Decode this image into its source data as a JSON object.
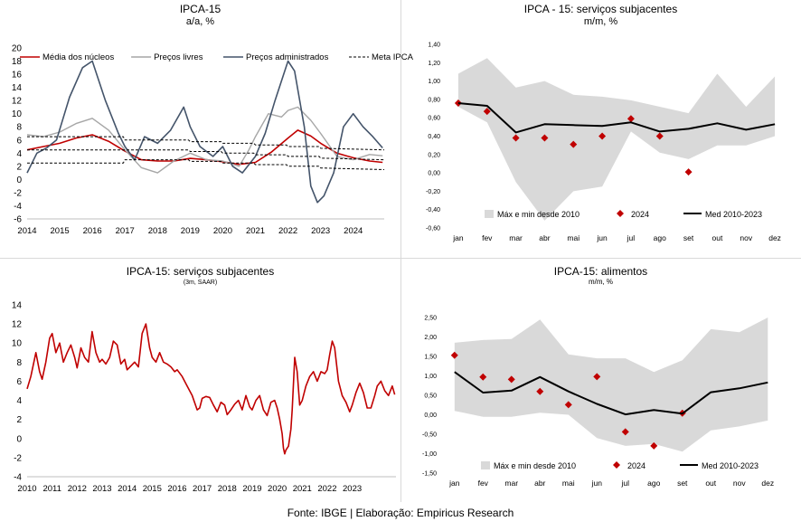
{
  "source": "Fonte: IBGE | Elaboração: Empiricus Research",
  "colors": {
    "red": "#c00000",
    "gray": "#a6a6a6",
    "navy": "#44546a",
    "black": "#000000",
    "band": "#d9d9d9",
    "diamond": "#c00000"
  },
  "chart_data": [
    {
      "id": "p1",
      "type": "line",
      "title": "IPCA-15",
      "subtitle": "a/a, %",
      "ylim": [
        -6,
        20
      ],
      "yticks": [
        -6,
        -4,
        -2,
        0,
        2,
        4,
        6,
        8,
        10,
        12,
        14,
        16,
        18,
        20
      ],
      "xlim": [
        2014,
        2024.95
      ],
      "xticks": [
        2014,
        2015,
        2016,
        2017,
        2018,
        2019,
        2020,
        2021,
        2022,
        2023,
        2024
      ],
      "legend_position": "top",
      "series": [
        {
          "name": "Média dos núcleos",
          "style": "red",
          "x": [
            2014,
            2014.5,
            2015,
            2015.5,
            2016,
            2016.5,
            2017,
            2017.5,
            2018,
            2018.5,
            2019,
            2019.5,
            2020,
            2020.5,
            2021,
            2021.5,
            2022,
            2022.3,
            2022.7,
            2023,
            2023.5,
            2024,
            2024.5,
            2024.9
          ],
          "y": [
            4.5,
            5.0,
            5.5,
            6.3,
            6.8,
            5.8,
            4.3,
            3.0,
            2.8,
            2.8,
            3.2,
            3.0,
            2.7,
            2.3,
            2.6,
            4.2,
            6.3,
            7.5,
            6.6,
            5.5,
            4.0,
            3.3,
            2.8,
            2.6
          ]
        },
        {
          "name": "Preços livres",
          "style": "gray",
          "x": [
            2014,
            2014.5,
            2015,
            2015.5,
            2016,
            2016.5,
            2017,
            2017.5,
            2018,
            2018.5,
            2019,
            2019.5,
            2020,
            2020.5,
            2020.8,
            2021,
            2021.4,
            2021.8,
            2022,
            2022.3,
            2022.7,
            2023,
            2023.5,
            2024,
            2024.5,
            2024.9
          ],
          "y": [
            6.8,
            6.5,
            7.2,
            8.5,
            9.3,
            7.5,
            4.5,
            1.8,
            1.0,
            2.8,
            4.0,
            3.0,
            2.8,
            2.0,
            4.5,
            6.5,
            10.0,
            9.5,
            10.5,
            11.0,
            9.0,
            7.0,
            3.5,
            3.0,
            3.8,
            3.6
          ]
        },
        {
          "name": "Preços administrados",
          "style": "navy",
          "x": [
            2014,
            2014.3,
            2014.6,
            2014.9,
            2015.3,
            2015.7,
            2016,
            2016.4,
            2016.8,
            2017,
            2017.3,
            2017.6,
            2018,
            2018.4,
            2018.8,
            2019,
            2019.3,
            2019.7,
            2020,
            2020.3,
            2020.6,
            2021,
            2021.3,
            2021.6,
            2021.9,
            2022,
            2022.2,
            2022.5,
            2022.7,
            2022.9,
            2023.1,
            2023.4,
            2023.7,
            2024,
            2024.3,
            2024.6,
            2024.9
          ],
          "y": [
            1.0,
            4.0,
            4.8,
            6.0,
            12.5,
            17.0,
            18.0,
            12.0,
            7.0,
            5.0,
            3.0,
            6.5,
            5.5,
            7.5,
            11.0,
            8.0,
            5.0,
            3.5,
            5.0,
            2.0,
            1.0,
            3.5,
            7.0,
            12.0,
            16.5,
            18.0,
            16.5,
            8.0,
            -1.0,
            -3.5,
            -2.5,
            1.0,
            8.0,
            10.0,
            8.0,
            6.5,
            4.8
          ]
        },
        {
          "name": "Meta IPCA",
          "style": "dash",
          "x": [
            2014,
            2016.95,
            2017,
            2017.95,
            2018,
            2018.95,
            2019,
            2019.95,
            2020,
            2020.95,
            2021,
            2021.95,
            2022,
            2022.95,
            2023,
            2024.95
          ],
          "y": [
            4.5,
            4.5,
            4.5,
            4.5,
            4.5,
            4.5,
            4.25,
            4.25,
            4.0,
            4.0,
            3.75,
            3.75,
            3.5,
            3.5,
            3.25,
            3.0
          ]
        },
        {
          "name": "",
          "style": "dash",
          "x": [
            2014,
            2016.95,
            2017,
            2017.95,
            2018,
            2018.95,
            2019,
            2019.95,
            2020,
            2020.95,
            2021,
            2021.95,
            2022,
            2022.95,
            2023,
            2024.95
          ],
          "y": [
            6.5,
            6.5,
            6.0,
            6.0,
            6.0,
            6.0,
            5.75,
            5.75,
            5.5,
            5.5,
            5.25,
            5.25,
            5.0,
            5.0,
            4.75,
            4.5
          ]
        },
        {
          "name": "",
          "style": "dash",
          "x": [
            2014,
            2016.95,
            2017,
            2017.95,
            2018,
            2018.95,
            2019,
            2019.95,
            2020,
            2020.95,
            2021,
            2021.95,
            2022,
            2022.95,
            2023,
            2024.95
          ],
          "y": [
            2.5,
            2.5,
            3.0,
            3.0,
            3.0,
            3.0,
            2.75,
            2.75,
            2.5,
            2.5,
            2.25,
            2.25,
            2.0,
            2.0,
            1.75,
            1.5
          ]
        }
      ]
    },
    {
      "id": "p2",
      "type": "line",
      "title": "IPCA - 15: serviços subjacentes",
      "subtitle": "m/m, %",
      "ylim": [
        -0.6,
        1.4
      ],
      "yticks": [
        "-0,60",
        "-0,40",
        "-0,20",
        "0,00",
        "0,20",
        "0,40",
        "0,60",
        "0,80",
        "1,00",
        "1,20",
        "1,40"
      ],
      "ytick_values": [
        -0.6,
        -0.4,
        -0.2,
        0,
        0.2,
        0.4,
        0.6,
        0.8,
        1.0,
        1.2,
        1.4
      ],
      "categories": [
        "jan",
        "fev",
        "mar",
        "abr",
        "mai",
        "jun",
        "jul",
        "ago",
        "set",
        "out",
        "nov",
        "dez"
      ],
      "band": {
        "name": "Máx e min desde 2010",
        "max": [
          1.08,
          1.25,
          0.93,
          1.0,
          0.85,
          0.83,
          0.79,
          0.72,
          0.65,
          1.08,
          0.72,
          1.05
        ],
        "min": [
          0.72,
          0.55,
          -0.1,
          -0.52,
          -0.2,
          -0.15,
          0.45,
          0.22,
          0.15,
          0.3,
          0.3,
          0.4
        ]
      },
      "series": [
        {
          "name": "2024",
          "style": "diamond",
          "values": [
            0.76,
            0.67,
            0.38,
            0.38,
            0.31,
            0.4,
            0.59,
            0.4,
            0.01,
            null,
            null,
            null
          ]
        },
        {
          "name": "Med 2010-2023",
          "style": "black",
          "values": [
            0.76,
            0.73,
            0.44,
            0.53,
            0.52,
            0.51,
            0.55,
            0.45,
            0.48,
            0.54,
            0.47,
            0.53
          ]
        }
      ]
    },
    {
      "id": "p3",
      "type": "line",
      "title": "IPCA-15: serviços subjacentes",
      "subtitle": "(3m, SAAR)",
      "ylim": [
        -4,
        14
      ],
      "yticks": [
        -4,
        -2,
        0,
        2,
        4,
        6,
        8,
        10,
        12,
        14
      ],
      "xlim": [
        2010,
        2024.75
      ],
      "xticks": [
        2010,
        2011,
        2012,
        2013,
        2014,
        2015,
        2016,
        2017,
        2018,
        2019,
        2020,
        2021,
        2022,
        2023
      ],
      "series": [
        {
          "name": "",
          "style": "red",
          "x": [
            2010,
            2010.15,
            2010.35,
            2010.5,
            2010.6,
            2010.75,
            2010.9,
            2011,
            2011.15,
            2011.3,
            2011.45,
            2011.6,
            2011.75,
            2011.9,
            2012,
            2012.15,
            2012.3,
            2012.45,
            2012.6,
            2012.75,
            2012.9,
            2013,
            2013.15,
            2013.3,
            2013.45,
            2013.6,
            2013.75,
            2013.9,
            2014,
            2014.15,
            2014.3,
            2014.45,
            2014.6,
            2014.75,
            2014.9,
            2015,
            2015.15,
            2015.3,
            2015.45,
            2015.6,
            2015.75,
            2015.9,
            2016,
            2016.2,
            2016.4,
            2016.6,
            2016.8,
            2016.9,
            2017,
            2017.15,
            2017.3,
            2017.45,
            2017.6,
            2017.75,
            2017.9,
            2018,
            2018.15,
            2018.3,
            2018.45,
            2018.6,
            2018.75,
            2018.9,
            2019,
            2019.15,
            2019.3,
            2019.45,
            2019.6,
            2019.75,
            2019.9,
            2020,
            2020.1,
            2020.2,
            2020.25,
            2020.3,
            2020.35,
            2020.45,
            2020.55,
            2020.6,
            2020.7,
            2020.8,
            2020.9,
            2021,
            2021.15,
            2021.3,
            2021.45,
            2021.6,
            2021.75,
            2021.9,
            2022,
            2022.1,
            2022.2,
            2022.3,
            2022.45,
            2022.6,
            2022.75,
            2022.9,
            2023,
            2023.15,
            2023.3,
            2023.45,
            2023.6,
            2023.75,
            2023.9,
            2024,
            2024.15,
            2024.3,
            2024.45,
            2024.6,
            2024.7
          ],
          "y": [
            5.2,
            6.5,
            9.0,
            7.0,
            6.2,
            8.0,
            10.5,
            11.0,
            9.0,
            10.0,
            8.0,
            9.0,
            9.8,
            8.5,
            7.4,
            9.5,
            8.5,
            8.0,
            11.2,
            9.0,
            8.0,
            8.3,
            7.8,
            8.5,
            10.2,
            9.8,
            7.8,
            8.3,
            7.2,
            7.6,
            8.0,
            7.5,
            11.0,
            12.0,
            9.5,
            8.5,
            8.0,
            9.0,
            8.0,
            7.8,
            7.5,
            7.0,
            7.2,
            6.5,
            5.5,
            4.5,
            3.0,
            3.2,
            4.2,
            4.4,
            4.3,
            3.5,
            2.8,
            3.8,
            3.5,
            2.5,
            3.0,
            3.6,
            4.0,
            3.0,
            4.5,
            3.3,
            3.0,
            4.0,
            4.5,
            3.0,
            2.4,
            3.8,
            4.0,
            3.2,
            2.0,
            0.5,
            -1.0,
            -1.6,
            -1.2,
            -0.8,
            1.0,
            3.0,
            8.5,
            7.0,
            3.5,
            4.0,
            5.5,
            6.5,
            7.0,
            6.0,
            7.0,
            6.8,
            7.2,
            8.8,
            10.2,
            9.5,
            6.0,
            4.5,
            3.8,
            2.8,
            3.5,
            4.8,
            5.8,
            4.8,
            3.2,
            3.2,
            4.5,
            5.5,
            6.0,
            5.0,
            4.5,
            5.5,
            4.6
          ]
        }
      ]
    },
    {
      "id": "p4",
      "type": "line",
      "title": "IPCA-15: alimentos",
      "subtitle": "m/m, %",
      "ylim": [
        -1.5,
        2.5
      ],
      "yticks": [
        "-1,50",
        "-1,00",
        "-0,50",
        "0,00",
        "0,50",
        "1,00",
        "1,50",
        "2,00",
        "2,50"
      ],
      "ytick_values": [
        -1.5,
        -1.0,
        -0.5,
        0,
        0.5,
        1.0,
        1.5,
        2.0,
        2.5
      ],
      "categories": [
        "jan",
        "fev",
        "mar",
        "abr",
        "mai",
        "jun",
        "jul",
        "ago",
        "set",
        "out",
        "nov",
        "dez"
      ],
      "band": {
        "name": "Máx e min desde 2010",
        "max": [
          1.85,
          1.92,
          1.95,
          2.45,
          1.55,
          1.45,
          1.45,
          1.1,
          1.4,
          2.2,
          2.12,
          2.5
        ],
        "min": [
          0.1,
          -0.05,
          -0.05,
          0.05,
          0.0,
          -0.6,
          -0.8,
          -0.75,
          -0.95,
          -0.4,
          -0.3,
          -0.15
        ]
      },
      "series": [
        {
          "name": "2024",
          "style": "diamond",
          "values": [
            1.53,
            0.97,
            0.91,
            0.6,
            0.26,
            0.98,
            -0.44,
            -0.8,
            0.04,
            null,
            null,
            null
          ]
        },
        {
          "name": "Med 2010-2023",
          "style": "black",
          "values": [
            1.1,
            0.57,
            0.62,
            0.97,
            0.6,
            0.28,
            0.01,
            0.12,
            0.03,
            0.58,
            0.68,
            0.83
          ]
        }
      ]
    }
  ]
}
